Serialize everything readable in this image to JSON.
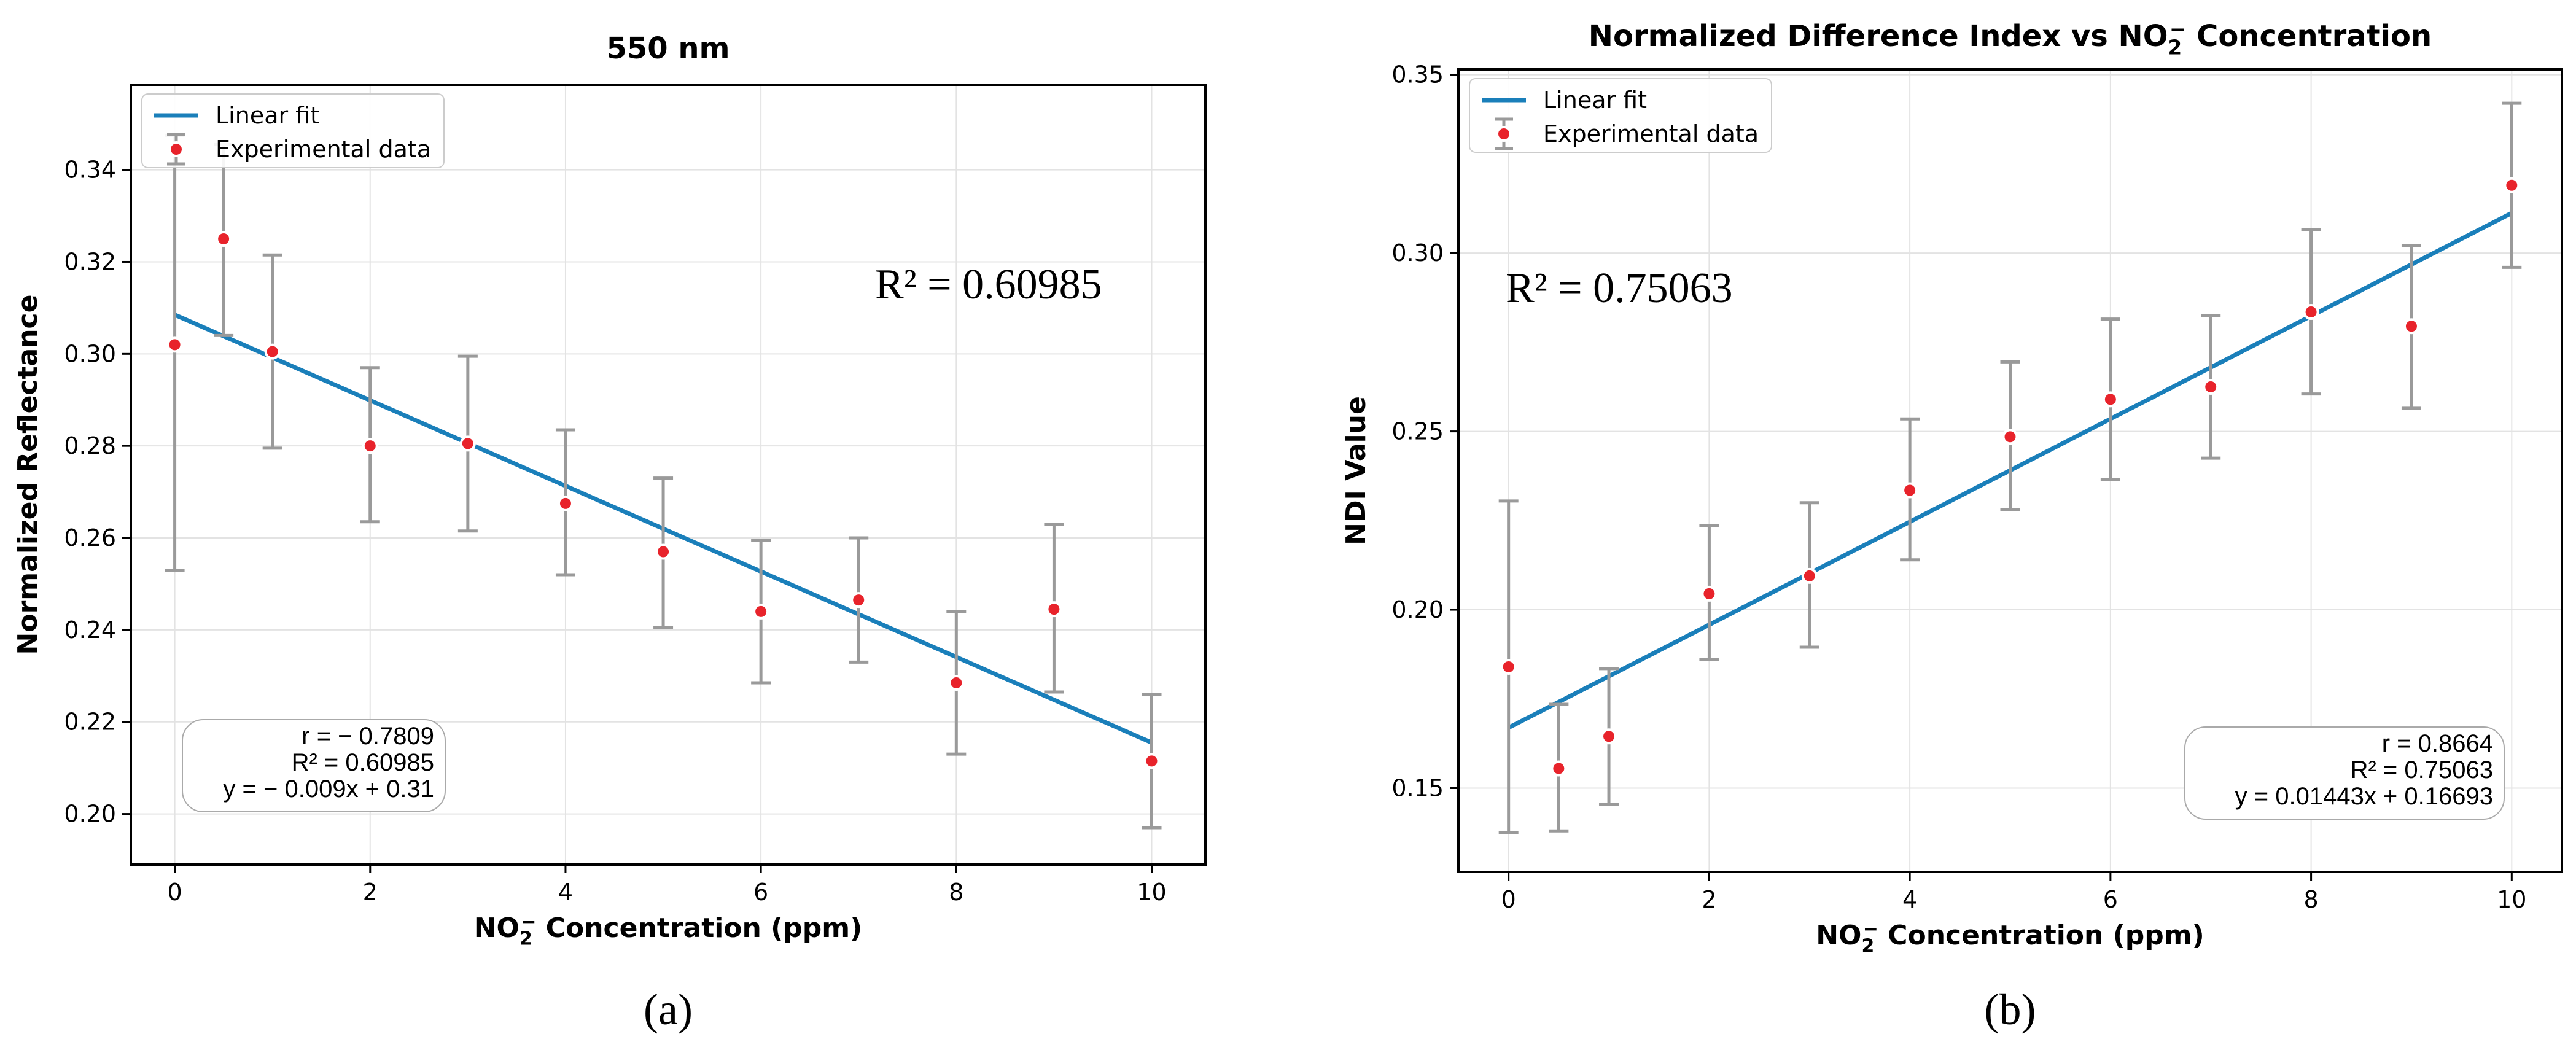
{
  "chart_data": [
    {
      "type": "scatter",
      "title": "550 nm",
      "xlabel_main": "NO",
      "xlabel_sub": "2",
      "xlabel_sup": "−",
      "xlabel_tail": "  Concentration (ppm)",
      "ylabel": "Normalized Reflectance",
      "xlim": [
        -0.45,
        10.55
      ],
      "ylim": [
        0.189,
        0.3585
      ],
      "xticks": [
        0,
        2,
        4,
        6,
        8,
        10
      ],
      "xtick_labels": [
        "0",
        "2",
        "4",
        "6",
        "8",
        "10"
      ],
      "yticks": [
        0.2,
        0.22,
        0.24,
        0.26,
        0.28,
        0.3,
        0.32,
        0.34
      ],
      "ytick_labels": [
        "0.20",
        "0.22",
        "0.24",
        "0.26",
        "0.28",
        "0.30",
        "0.32",
        "0.34"
      ],
      "grid": true,
      "legend_position": "top-left",
      "legend": [
        "Linear fit",
        "Experimental data"
      ],
      "series": [
        {
          "name": "Experimental data",
          "x": [
            0,
            0.5,
            1,
            2,
            3,
            4,
            5,
            6,
            7,
            8,
            9,
            10
          ],
          "y": [
            0.302,
            0.325,
            0.3005,
            0.28,
            0.2805,
            0.2675,
            0.257,
            0.244,
            0.2465,
            0.2285,
            0.2445,
            0.2115
          ],
          "yerr_low": [
            0.253,
            0.304,
            0.2795,
            0.2635,
            0.2615,
            0.252,
            0.2405,
            0.2285,
            0.233,
            0.213,
            0.2265,
            0.197
          ],
          "yerr_high": [
            0.3475,
            0.3455,
            0.3215,
            0.297,
            0.2995,
            0.2835,
            0.273,
            0.2595,
            0.26,
            0.244,
            0.263,
            0.226
          ]
        },
        {
          "name": "Linear fit",
          "slope": -0.0093,
          "intercept": 0.3085,
          "x_range": [
            0,
            10
          ]
        }
      ],
      "annotation_r2": "R² = 0.60985",
      "stats": [
        "r = − 0.7809",
        "R² = 0.60985",
        "y = − 0.009x + 0.31"
      ],
      "stats_position": "bottom-left",
      "panel_label": "(a)"
    },
    {
      "type": "scatter",
      "title_main": "Normalized Difference Index vs NO",
      "title_sub": "2",
      "title_sup": "−",
      "title_tail": "  Concentration",
      "xlabel_main": "NO",
      "xlabel_sub": "2",
      "xlabel_sup": "−",
      "xlabel_tail": "  Concentration (ppm)",
      "ylabel": "NDI Value",
      "xlim": [
        -0.5,
        10.5
      ],
      "ylim": [
        0.1265,
        0.3515
      ],
      "xticks": [
        0,
        2,
        4,
        6,
        8,
        10
      ],
      "xtick_labels": [
        "0",
        "2",
        "4",
        "6",
        "8",
        "10"
      ],
      "yticks": [
        0.15,
        0.2,
        0.25,
        0.3,
        0.35
      ],
      "ytick_labels": [
        "0.15",
        "0.20",
        "0.25",
        "0.30",
        "0.35"
      ],
      "grid": true,
      "legend_position": "top-left",
      "legend": [
        "Linear fit",
        "Experimental data"
      ],
      "series": [
        {
          "name": "Experimental data",
          "x": [
            0,
            0.5,
            1,
            2,
            3,
            4,
            5,
            6,
            7,
            8,
            9,
            10
          ],
          "y": [
            0.184,
            0.1555,
            0.1645,
            0.2045,
            0.2095,
            0.2335,
            0.2485,
            0.259,
            0.2625,
            0.2835,
            0.2795,
            0.319
          ],
          "yerr_low": [
            0.1375,
            0.138,
            0.1455,
            0.186,
            0.1895,
            0.214,
            0.228,
            0.2365,
            0.2425,
            0.2605,
            0.2565,
            0.296
          ],
          "yerr_high": [
            0.2305,
            0.1735,
            0.1835,
            0.2235,
            0.23,
            0.2535,
            0.2695,
            0.2815,
            0.2825,
            0.3065,
            0.302,
            0.342
          ]
        },
        {
          "name": "Linear fit",
          "slope": 0.01443,
          "intercept": 0.16693,
          "x_range": [
            0,
            10
          ]
        }
      ],
      "annotation_r2": "R² = 0.75063",
      "stats": [
        "r = 0.8664",
        "R² = 0.75063",
        "y = 0.01443x + 0.16693"
      ],
      "stats_position": "bottom-right",
      "panel_label": "(b)"
    }
  ],
  "colors": {
    "fit_line": "#1a7fba",
    "points": "#e8232b",
    "error_bars": "#9a9a9a",
    "grid": "#e3e3e3"
  }
}
